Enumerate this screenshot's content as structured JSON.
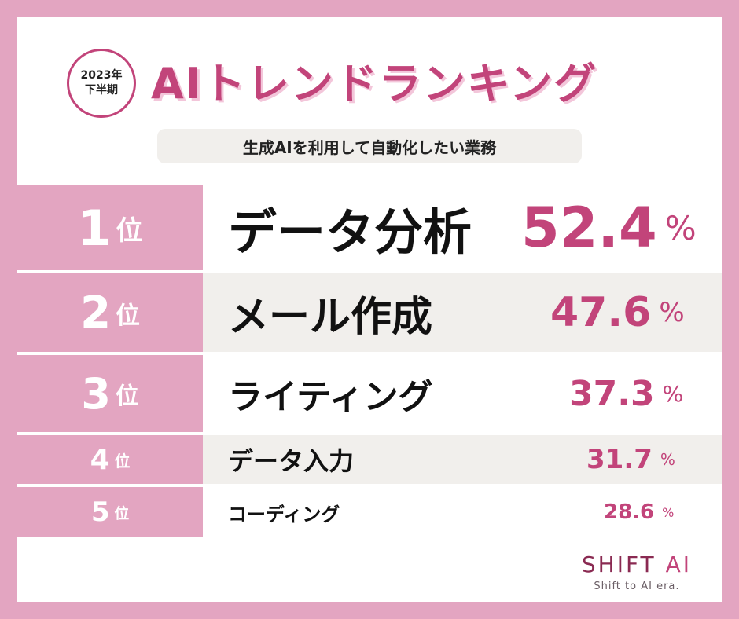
{
  "badge": {
    "year": "2023年",
    "period": "下半期"
  },
  "title": "AIトレンドランキング",
  "subtitle": "生成AIを利用して自動化したい業務",
  "rankings": [
    {
      "rank": "1",
      "unit": "位",
      "item": "データ分析",
      "percent": "52.4",
      "sign": "%"
    },
    {
      "rank": "2",
      "unit": "位",
      "item": "メール作成",
      "percent": "47.6",
      "sign": "%"
    },
    {
      "rank": "3",
      "unit": "位",
      "item": "ライティング",
      "percent": "37.3",
      "sign": "%"
    },
    {
      "rank": "4",
      "unit": "位",
      "item": "データ入力",
      "percent": "31.7",
      "sign": "%"
    },
    {
      "rank": "5",
      "unit": "位",
      "item": "コーディング",
      "percent": "28.6",
      "sign": "%"
    }
  ],
  "logo": {
    "name_left": "SHIFT",
    "name_right": "AI",
    "tagline": "Shift to AI era."
  },
  "colors": {
    "accent": "#c2447a",
    "rank_bg": "#e3a5c1",
    "shade": "#f1efec",
    "frame": "#e3a5c1"
  }
}
